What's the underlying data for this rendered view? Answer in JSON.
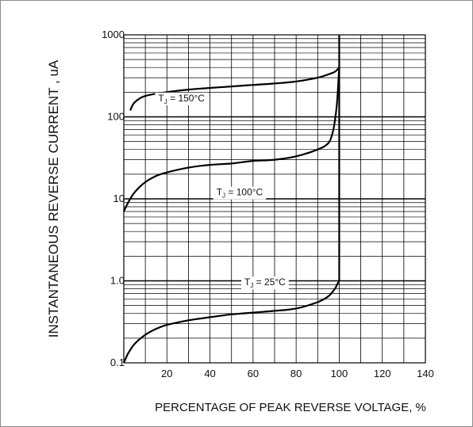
{
  "chart_data": {
    "type": "line",
    "title": "",
    "xlabel": "PERCENTAGE OF PEAK REVERSE VOLTAGE, %",
    "ylabel": "INSTANTANEOUS REVERSE CURRENT , uA",
    "x_scale": "linear",
    "y_scale": "log",
    "xlim": [
      0,
      140
    ],
    "ylim": [
      0.1,
      1000
    ],
    "x_ticks": [
      20,
      40,
      60,
      80,
      100,
      120,
      140
    ],
    "x_tick_labels": [
      "20",
      "40",
      "60",
      "80",
      "100",
      "120",
      "140"
    ],
    "y_ticks": [
      0.1,
      1,
      10,
      100,
      1000
    ],
    "y_tick_labels": [
      "0.1",
      "1.0",
      "10",
      "100",
      "1000"
    ],
    "grid": true,
    "series": [
      {
        "name": "",
        "label": {
          "prefix": "T",
          "sub": "J",
          "rest": " = 150°C"
        },
        "x": [
          3,
          5,
          10,
          20,
          30,
          40,
          50,
          60,
          70,
          80,
          90,
          95,
          98,
          100
        ],
        "y": [
          120,
          150,
          180,
          200,
          215,
          225,
          235,
          245,
          255,
          270,
          300,
          330,
          355,
          400
        ]
      },
      {
        "name": "",
        "label": {
          "prefix": "T",
          "sub": "J",
          "rest": " = 100°C"
        },
        "x": [
          0,
          2,
          5,
          10,
          15,
          20,
          30,
          40,
          50,
          60,
          70,
          80,
          90,
          95,
          97,
          98,
          99,
          100
        ],
        "y": [
          7,
          9,
          12,
          16,
          19,
          21,
          24,
          26,
          27,
          29,
          30,
          33,
          40,
          48,
          65,
          90,
          150,
          400
        ]
      },
      {
        "name": "",
        "label": {
          "prefix": "T",
          "sub": "J",
          "rest": " = 25°C"
        },
        "x": [
          0,
          2,
          5,
          10,
          15,
          20,
          30,
          40,
          50,
          60,
          70,
          80,
          90,
          95,
          98,
          99,
          100
        ],
        "y": [
          0.1,
          0.13,
          0.17,
          0.22,
          0.26,
          0.29,
          0.33,
          0.36,
          0.39,
          0.41,
          0.43,
          0.46,
          0.55,
          0.65,
          0.8,
          0.9,
          1.0
        ]
      }
    ],
    "vertical_line": {
      "x": 100,
      "y_from": 1.0,
      "y_to": 1000
    },
    "label_positions": [
      {
        "x": 16,
        "y": 155
      },
      {
        "x": 43,
        "y": 11
      },
      {
        "x": 56,
        "y": 0.88
      }
    ]
  }
}
